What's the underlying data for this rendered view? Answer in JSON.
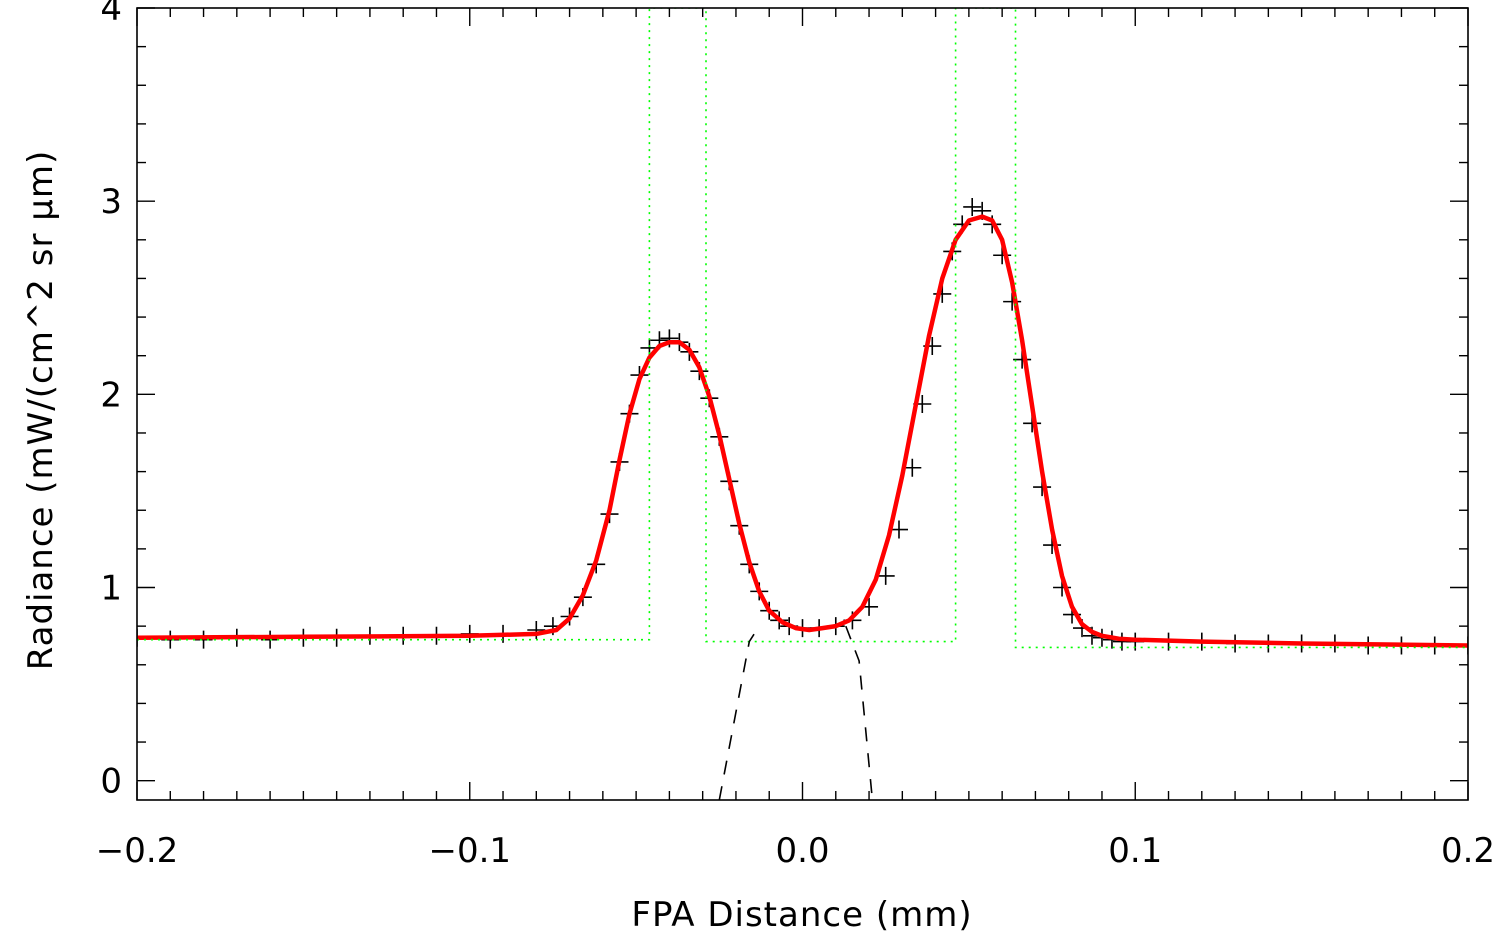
{
  "chart_data": {
    "type": "scatter",
    "title": "",
    "xlabel": "FPA Distance (mm)",
    "ylabel": "Radiance (mW/(cm^2 sr μm)",
    "xlim": [
      -0.2,
      0.2
    ],
    "ylim": [
      -0.1,
      4.0
    ],
    "x_ticks": [
      -0.2,
      -0.1,
      0.0,
      0.1,
      0.2
    ],
    "x_tick_labels": [
      "−0.2",
      "−0.1",
      "0.0",
      "0.1",
      "0.2"
    ],
    "y_ticks": [
      0,
      1,
      2,
      3,
      4
    ],
    "y_tick_labels": [
      "0",
      "1",
      "2",
      "3",
      "4"
    ],
    "grid": false,
    "series": [
      {
        "kind": "measured",
        "marker": "plus",
        "color": "#000000",
        "x": [
          -0.2,
          -0.19,
          -0.18,
          -0.17,
          -0.16,
          -0.15,
          -0.14,
          -0.13,
          -0.12,
          -0.11,
          -0.1,
          -0.09,
          -0.08,
          -0.075,
          -0.07,
          -0.066,
          -0.062,
          -0.058,
          -0.055,
          -0.052,
          -0.049,
          -0.046,
          -0.043,
          -0.04,
          -0.037,
          -0.034,
          -0.031,
          -0.028,
          -0.025,
          -0.022,
          -0.019,
          -0.016,
          -0.013,
          -0.01,
          -0.007,
          -0.004,
          0.0,
          0.005,
          0.01,
          0.015,
          0.02,
          0.025,
          0.029,
          0.033,
          0.036,
          0.039,
          0.042,
          0.045,
          0.048,
          0.051,
          0.054,
          0.057,
          0.06,
          0.063,
          0.066,
          0.069,
          0.072,
          0.075,
          0.078,
          0.081,
          0.084,
          0.087,
          0.09,
          0.093,
          0.096,
          0.1,
          0.11,
          0.12,
          0.13,
          0.14,
          0.15,
          0.16,
          0.17,
          0.18,
          0.19,
          0.2
        ],
        "y": [
          0.74,
          0.73,
          0.73,
          0.74,
          0.73,
          0.74,
          0.74,
          0.75,
          0.75,
          0.75,
          0.76,
          0.76,
          0.78,
          0.8,
          0.85,
          0.95,
          1.12,
          1.38,
          1.65,
          1.9,
          2.1,
          2.24,
          2.28,
          2.29,
          2.27,
          2.22,
          2.12,
          1.98,
          1.78,
          1.55,
          1.32,
          1.12,
          0.98,
          0.88,
          0.83,
          0.8,
          0.79,
          0.79,
          0.8,
          0.83,
          0.9,
          1.06,
          1.3,
          1.62,
          1.95,
          2.25,
          2.52,
          2.74,
          2.88,
          2.97,
          2.95,
          2.88,
          2.72,
          2.48,
          2.18,
          1.85,
          1.52,
          1.22,
          1.0,
          0.86,
          0.79,
          0.75,
          0.74,
          0.73,
          0.72,
          0.72,
          0.72,
          0.72,
          0.71,
          0.71,
          0.71,
          0.71,
          0.7,
          0.7,
          0.7,
          0.7
        ]
      },
      {
        "kind": "fit",
        "color": "#ff0000",
        "x": [
          -0.2,
          -0.15,
          -0.1,
          -0.08,
          -0.074,
          -0.07,
          -0.066,
          -0.062,
          -0.058,
          -0.055,
          -0.052,
          -0.049,
          -0.046,
          -0.043,
          -0.04,
          -0.037,
          -0.034,
          -0.031,
          -0.028,
          -0.025,
          -0.022,
          -0.019,
          -0.016,
          -0.013,
          -0.01,
          -0.006,
          -0.002,
          0.002,
          0.006,
          0.01,
          0.014,
          0.018,
          0.022,
          0.026,
          0.03,
          0.034,
          0.038,
          0.042,
          0.046,
          0.05,
          0.054,
          0.057,
          0.06,
          0.063,
          0.066,
          0.069,
          0.072,
          0.075,
          0.078,
          0.081,
          0.084,
          0.087,
          0.09,
          0.095,
          0.1,
          0.12,
          0.15,
          0.2
        ],
        "y": [
          0.74,
          0.745,
          0.75,
          0.76,
          0.78,
          0.84,
          0.96,
          1.14,
          1.4,
          1.66,
          1.9,
          2.08,
          2.19,
          2.25,
          2.27,
          2.27,
          2.23,
          2.14,
          1.99,
          1.79,
          1.56,
          1.33,
          1.13,
          0.98,
          0.88,
          0.82,
          0.79,
          0.78,
          0.79,
          0.8,
          0.83,
          0.9,
          1.04,
          1.27,
          1.58,
          1.94,
          2.3,
          2.6,
          2.8,
          2.9,
          2.92,
          2.9,
          2.8,
          2.58,
          2.28,
          1.94,
          1.6,
          1.3,
          1.06,
          0.9,
          0.81,
          0.77,
          0.75,
          0.735,
          0.73,
          0.72,
          0.71,
          0.7
        ]
      },
      {
        "kind": "window",
        "style": "dotted",
        "color": "#00ff00",
        "x": [
          -0.2,
          -0.046,
          -0.046,
          -0.029,
          -0.029,
          0.046,
          0.046,
          0.064,
          0.064,
          0.2
        ],
        "y": [
          0.73,
          0.73,
          4.0,
          4.0,
          0.72,
          0.72,
          4.0,
          4.0,
          0.69,
          0.69
        ]
      },
      {
        "kind": "baseline-left",
        "style": "dashed",
        "color": "#000000",
        "x": [
          -0.025,
          -0.016,
          -0.013
        ],
        "y": [
          -0.1,
          0.72,
          0.8
        ]
      },
      {
        "kind": "baseline-right",
        "style": "dashed",
        "color": "#000000",
        "x": [
          0.013,
          0.017,
          0.021
        ],
        "y": [
          0.8,
          0.62,
          -0.1
        ]
      }
    ]
  }
}
